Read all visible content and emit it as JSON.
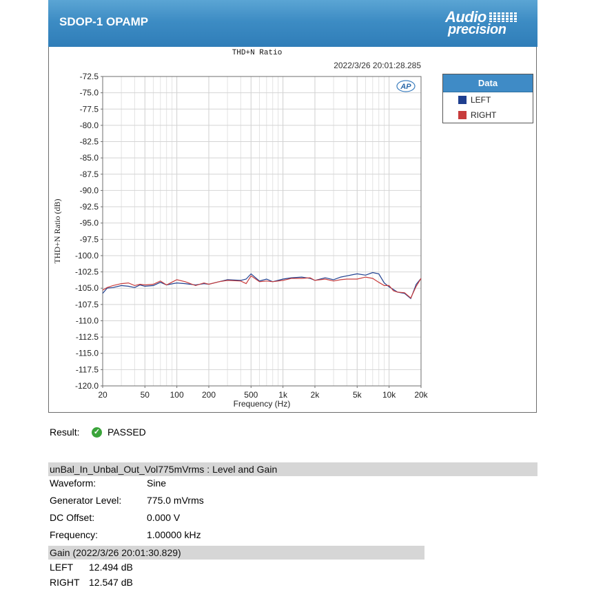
{
  "header": {
    "title": "SDOP-1 OPAMP",
    "logo_line1": "Audio",
    "logo_line2": "precision"
  },
  "chart_data": {
    "type": "line",
    "title": "THD+N Ratio",
    "timestamp": "2022/3/26 20:01:28.285",
    "xlabel": "Frequency (Hz)",
    "ylabel": "THD+N Ratio (dB)",
    "xscale": "log",
    "xlim": [
      20,
      20000
    ],
    "ylim": [
      -120,
      -72.5
    ],
    "xticks": [
      20,
      50,
      100,
      200,
      500,
      1000,
      2000,
      5000,
      10000,
      20000
    ],
    "xtick_labels": [
      "20",
      "50",
      "100",
      "200",
      "500",
      "1k",
      "2k",
      "5k",
      "10k",
      "20k"
    ],
    "yticks": [
      -72.5,
      -75.0,
      -77.5,
      -80.0,
      -82.5,
      -85.0,
      -87.5,
      -90.0,
      -92.5,
      -95.0,
      -97.5,
      -100.0,
      -102.5,
      -105.0,
      -107.5,
      -110.0,
      -112.5,
      -115.0,
      -117.5,
      -120.0
    ],
    "ytick_labels": [
      "-72.5",
      "-75.0",
      "-77.5",
      "-80.0",
      "-82.5",
      "-85.0",
      "-87.5",
      "-90.0",
      "-92.5",
      "-95.0",
      "-97.5",
      "-100.0",
      "-102.5",
      "-105.0",
      "-107.5",
      "-110.0",
      "-112.5",
      "-115.0",
      "-117.5",
      "-120.0"
    ],
    "grid": true,
    "legend": {
      "title": "Data",
      "position": "right"
    },
    "series": [
      {
        "name": "LEFT",
        "color": "#1f3f8f",
        "x": [
          20,
          22,
          25,
          30,
          35,
          40,
          45,
          50,
          60,
          70,
          80,
          100,
          120,
          150,
          180,
          200,
          250,
          300,
          400,
          450,
          500,
          600,
          700,
          800,
          1000,
          1200,
          1500,
          1800,
          2000,
          2500,
          3000,
          3500,
          4000,
          5000,
          6000,
          7000,
          8000,
          9000,
          10000,
          11000,
          12000,
          14000,
          16000,
          18000,
          20000
        ],
        "y": [
          -105.8,
          -105.0,
          -104.9,
          -104.6,
          -104.7,
          -104.9,
          -104.5,
          -104.7,
          -104.6,
          -104.1,
          -104.5,
          -104.2,
          -104.3,
          -104.5,
          -104.3,
          -104.4,
          -104.0,
          -103.7,
          -103.8,
          -103.6,
          -102.8,
          -103.9,
          -103.6,
          -104.0,
          -103.6,
          -103.4,
          -103.3,
          -103.5,
          -103.8,
          -103.4,
          -103.7,
          -103.3,
          -103.1,
          -102.8,
          -103.0,
          -102.6,
          -102.8,
          -104.2,
          -104.8,
          -105.2,
          -105.6,
          -105.8,
          -106.6,
          -104.4,
          -103.5
        ]
      },
      {
        "name": "RIGHT",
        "color": "#c83c3c",
        "x": [
          20,
          22,
          25,
          30,
          35,
          40,
          45,
          50,
          60,
          70,
          80,
          100,
          120,
          150,
          180,
          200,
          250,
          300,
          400,
          450,
          500,
          600,
          700,
          800,
          1000,
          1200,
          1500,
          1800,
          2000,
          2500,
          3000,
          3500,
          4000,
          5000,
          6000,
          7000,
          8000,
          9000,
          10000,
          11000,
          12000,
          14000,
          16000,
          18000,
          20000
        ],
        "y": [
          -105.3,
          -104.9,
          -104.6,
          -104.3,
          -104.2,
          -104.6,
          -104.4,
          -104.5,
          -104.4,
          -103.9,
          -104.5,
          -103.7,
          -104.0,
          -104.6,
          -104.2,
          -104.4,
          -104.0,
          -103.8,
          -103.9,
          -104.3,
          -103.1,
          -104.0,
          -103.9,
          -104.0,
          -103.8,
          -103.5,
          -103.5,
          -103.4,
          -103.8,
          -103.6,
          -103.9,
          -103.7,
          -103.6,
          -103.6,
          -103.3,
          -103.5,
          -104.1,
          -104.6,
          -104.6,
          -105.4,
          -105.6,
          -105.7,
          -106.5,
          -104.7,
          -103.5
        ]
      }
    ]
  },
  "result": {
    "label": "Result:",
    "value": "PASSED"
  },
  "section1": {
    "title": "unBal_In_Unbal_Out_Vol775mVrms : Level and Gain",
    "rows": [
      {
        "k": "Waveform:",
        "v": "Sine"
      },
      {
        "k": "Generator Level:",
        "v": "775.0 mVrms"
      },
      {
        "k": "DC Offset:",
        "v": "0.000 V"
      },
      {
        "k": "Frequency:",
        "v": "1.00000 kHz"
      }
    ]
  },
  "gain": {
    "title": "Gain (2022/3/26 20:01:30.829)",
    "rows": [
      {
        "k": "LEFT",
        "v": "12.494 dB"
      },
      {
        "k": "RIGHT",
        "v": "12.547 dB"
      }
    ]
  }
}
